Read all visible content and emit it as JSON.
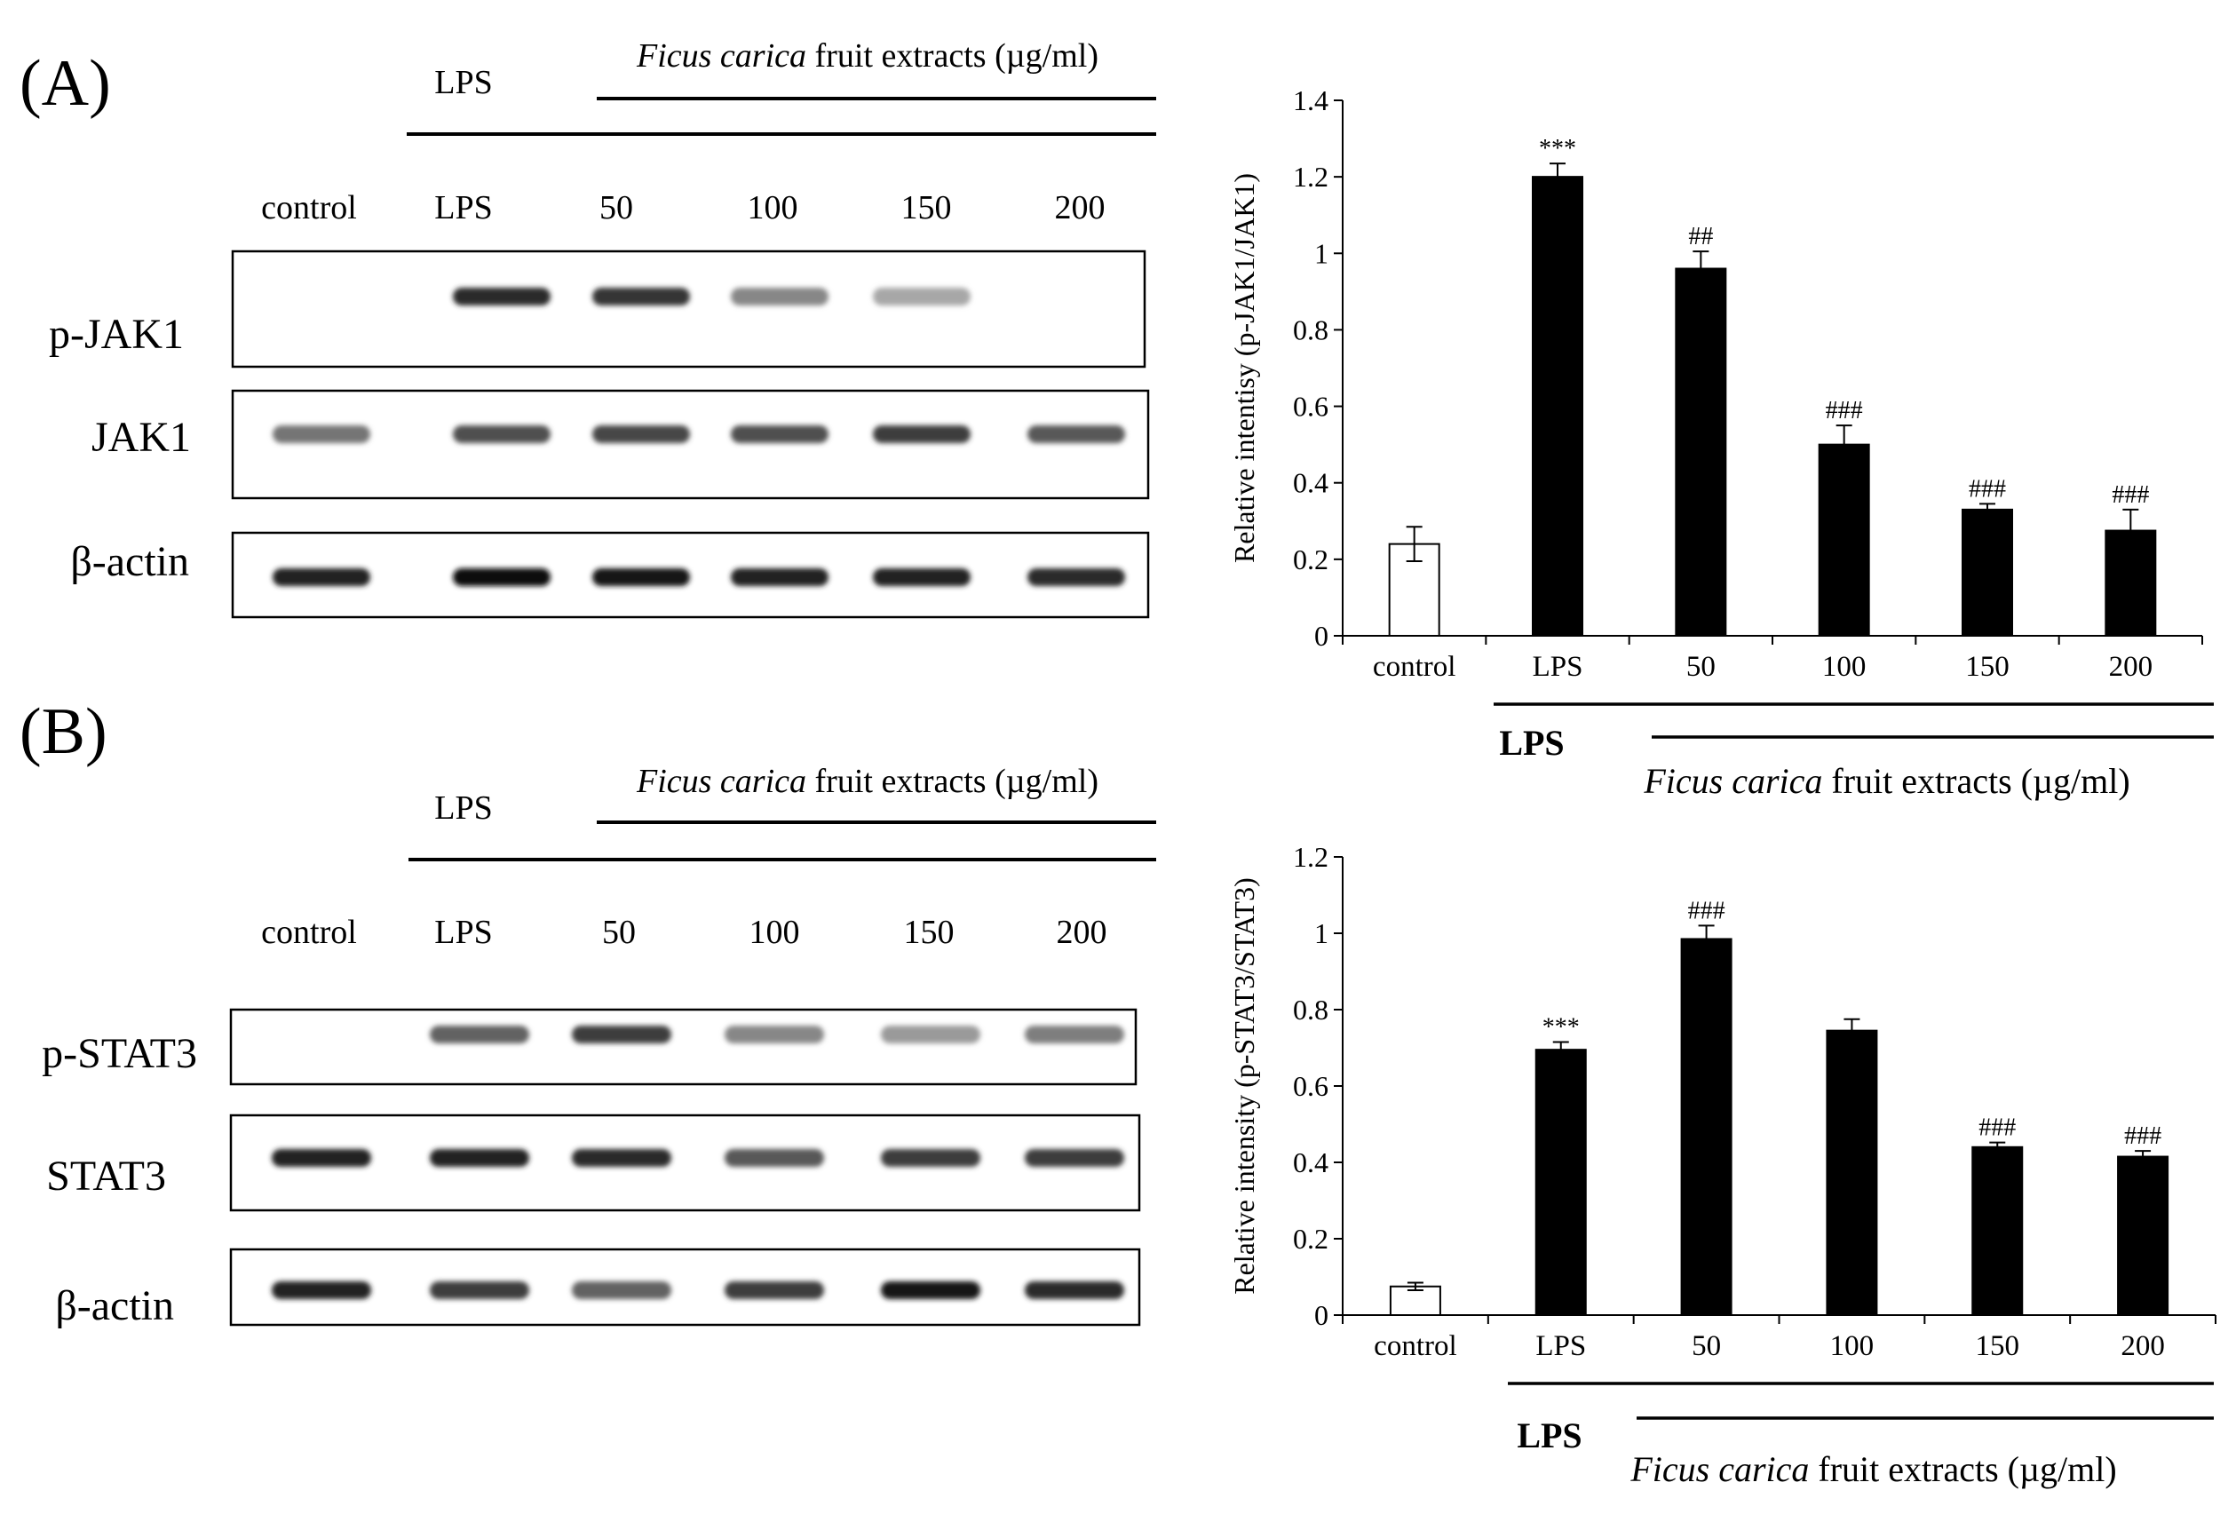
{
  "panels": [
    {
      "label": "(A)",
      "blot": {
        "lps_header": "LPS",
        "extract_header_italic": "Ficus carica",
        "extract_header_rest": " fruit extracts (µg/ml)",
        "lanes": [
          "control",
          "LPS",
          "50",
          "100",
          "150",
          "200"
        ],
        "rows": [
          {
            "name": "p-JAK1",
            "intensity": [
              0,
              0.85,
              0.8,
              0.35,
              0.18,
              0
            ]
          },
          {
            "name": "JAK1",
            "intensity": [
              0.45,
              0.65,
              0.7,
              0.65,
              0.75,
              0.6
            ]
          },
          {
            "name": "β-actin",
            "intensity": [
              0.9,
              1,
              0.95,
              0.9,
              0.9,
              0.85
            ]
          }
        ]
      }
    },
    {
      "label": "(B)",
      "blot": {
        "lps_header": "LPS",
        "extract_header_italic": "Ficus carica",
        "extract_header_rest": " fruit extracts (µg/ml)",
        "lanes": [
          "control",
          "LPS",
          "50",
          "100",
          "150",
          "200"
        ],
        "rows": [
          {
            "name": "p-STAT3",
            "intensity": [
              0,
              0.55,
              0.75,
              0.35,
              0.25,
              0.4
            ]
          },
          {
            "name": "STAT3",
            "intensity": [
              0.9,
              0.9,
              0.85,
              0.6,
              0.75,
              0.75
            ]
          },
          {
            "name": "β-actin",
            "intensity": [
              0.9,
              0.75,
              0.55,
              0.75,
              0.95,
              0.85
            ]
          }
        ]
      }
    }
  ],
  "chart_data": [
    {
      "type": "bar",
      "categories": [
        "control",
        "LPS",
        "50",
        "100",
        "150",
        "200"
      ],
      "values": [
        0.24,
        1.2,
        0.96,
        0.5,
        0.33,
        0.275
      ],
      "errors": [
        0.045,
        0.035,
        0.045,
        0.05,
        0.015,
        0.055
      ],
      "bar_colors": [
        "#ffffff",
        "#000000",
        "#000000",
        "#000000",
        "#000000",
        "#000000"
      ],
      "annotations": [
        "",
        "***",
        "##",
        "###",
        "###",
        "###"
      ],
      "ylabel": "Relative  intentisy (p-JAK1/JAK1)",
      "ylim": [
        0,
        1.4
      ],
      "yticks": [
        0,
        0.2,
        0.4,
        0.6,
        0.8,
        1,
        1.2,
        1.4
      ],
      "ytick_labels": [
        "0",
        "0.2",
        "0.4",
        "0.6",
        "0.8",
        "1",
        "1.2",
        "1.4"
      ],
      "group_lps": "LPS",
      "group_extract_italic": "Ficus carica",
      "group_extract_rest": " fruit  extracts  (µg/ml)"
    },
    {
      "type": "bar",
      "categories": [
        "control",
        "LPS",
        "50",
        "100",
        "150",
        "200"
      ],
      "values": [
        0.075,
        0.695,
        0.985,
        0.745,
        0.44,
        0.415
      ],
      "errors": [
        0.01,
        0.02,
        0.035,
        0.03,
        0.012,
        0.015
      ],
      "bar_colors": [
        "#ffffff",
        "#000000",
        "#000000",
        "#000000",
        "#000000",
        "#000000"
      ],
      "annotations": [
        "",
        "***",
        "###",
        "",
        "###",
        "###"
      ],
      "ylabel": "Relative  intensity (p-STAT3/STAT3)",
      "ylim": [
        0,
        1.2
      ],
      "yticks": [
        0,
        0.2,
        0.4,
        0.6,
        0.8,
        1,
        1.2
      ],
      "ytick_labels": [
        "0",
        "0.2",
        "0.4",
        "0.6",
        "0.8",
        "1",
        "1.2"
      ],
      "group_lps": "LPS",
      "group_extract_italic": "Ficus carica",
      "group_extract_rest": " fruit  extracts  (µg/ml)"
    }
  ]
}
